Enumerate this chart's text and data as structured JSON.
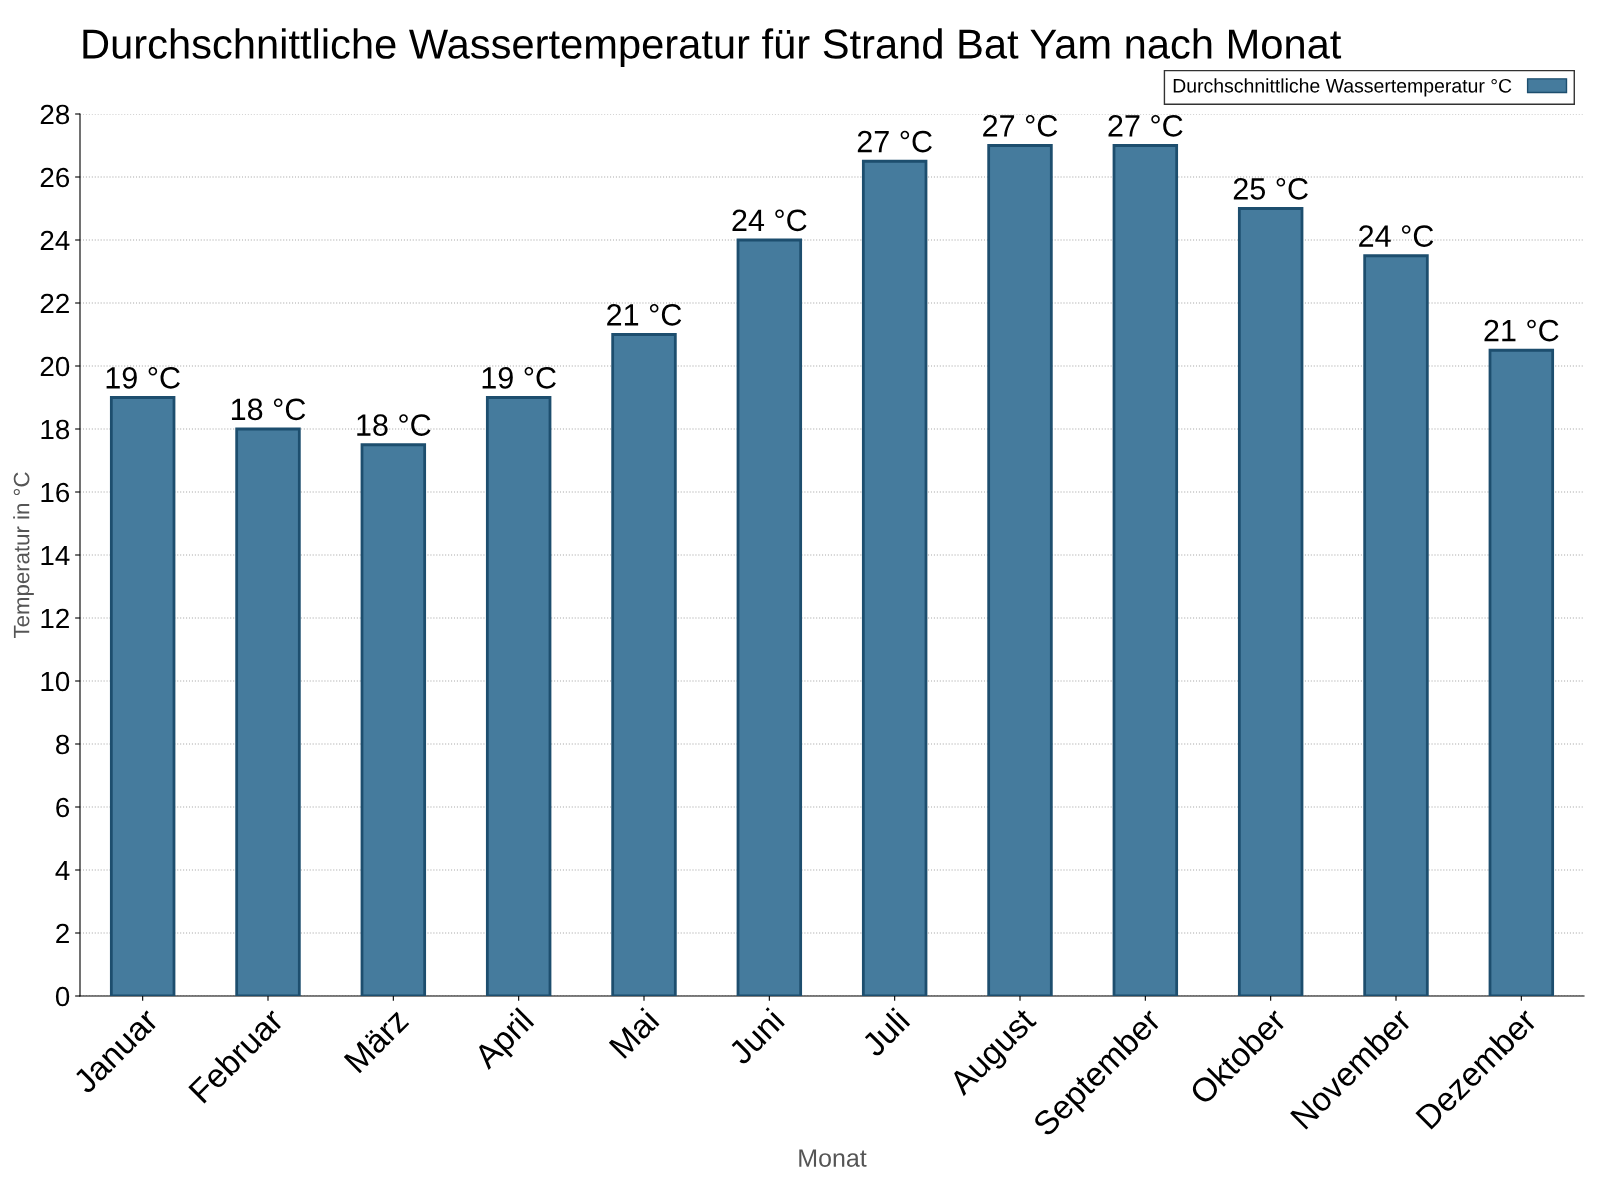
{
  "chart_data": {
    "type": "bar",
    "title": "Durchschnittliche Wassertemperatur für Strand Bat Yam nach Monat",
    "xlabel": "Monat",
    "ylabel": "Temperatur in °C",
    "categories": [
      "Januar",
      "Februar",
      "März",
      "April",
      "Mai",
      "Juni",
      "Juli",
      "August",
      "September",
      "Oktober",
      "November",
      "Dezember"
    ],
    "series": [
      {
        "name": "Durchschnittliche Wassertemperatur °C",
        "color": "#457b9d",
        "values": [
          19,
          18,
          17.5,
          19,
          21,
          24,
          26.5,
          27,
          27,
          25,
          23.5,
          20.5
        ],
        "value_labels": [
          "19 °C",
          "18 °C",
          "18 °C",
          "19 °C",
          "21 °C",
          "24 °C",
          "27 °C",
          "27 °C",
          "27 °C",
          "25 °C",
          "24 °C",
          "21 °C"
        ]
      }
    ],
    "ylim": [
      0,
      28
    ],
    "yticks": [
      0,
      2,
      4,
      6,
      8,
      10,
      12,
      14,
      16,
      18,
      20,
      22,
      24,
      26,
      28
    ],
    "grid": "y",
    "legend": "top right"
  }
}
